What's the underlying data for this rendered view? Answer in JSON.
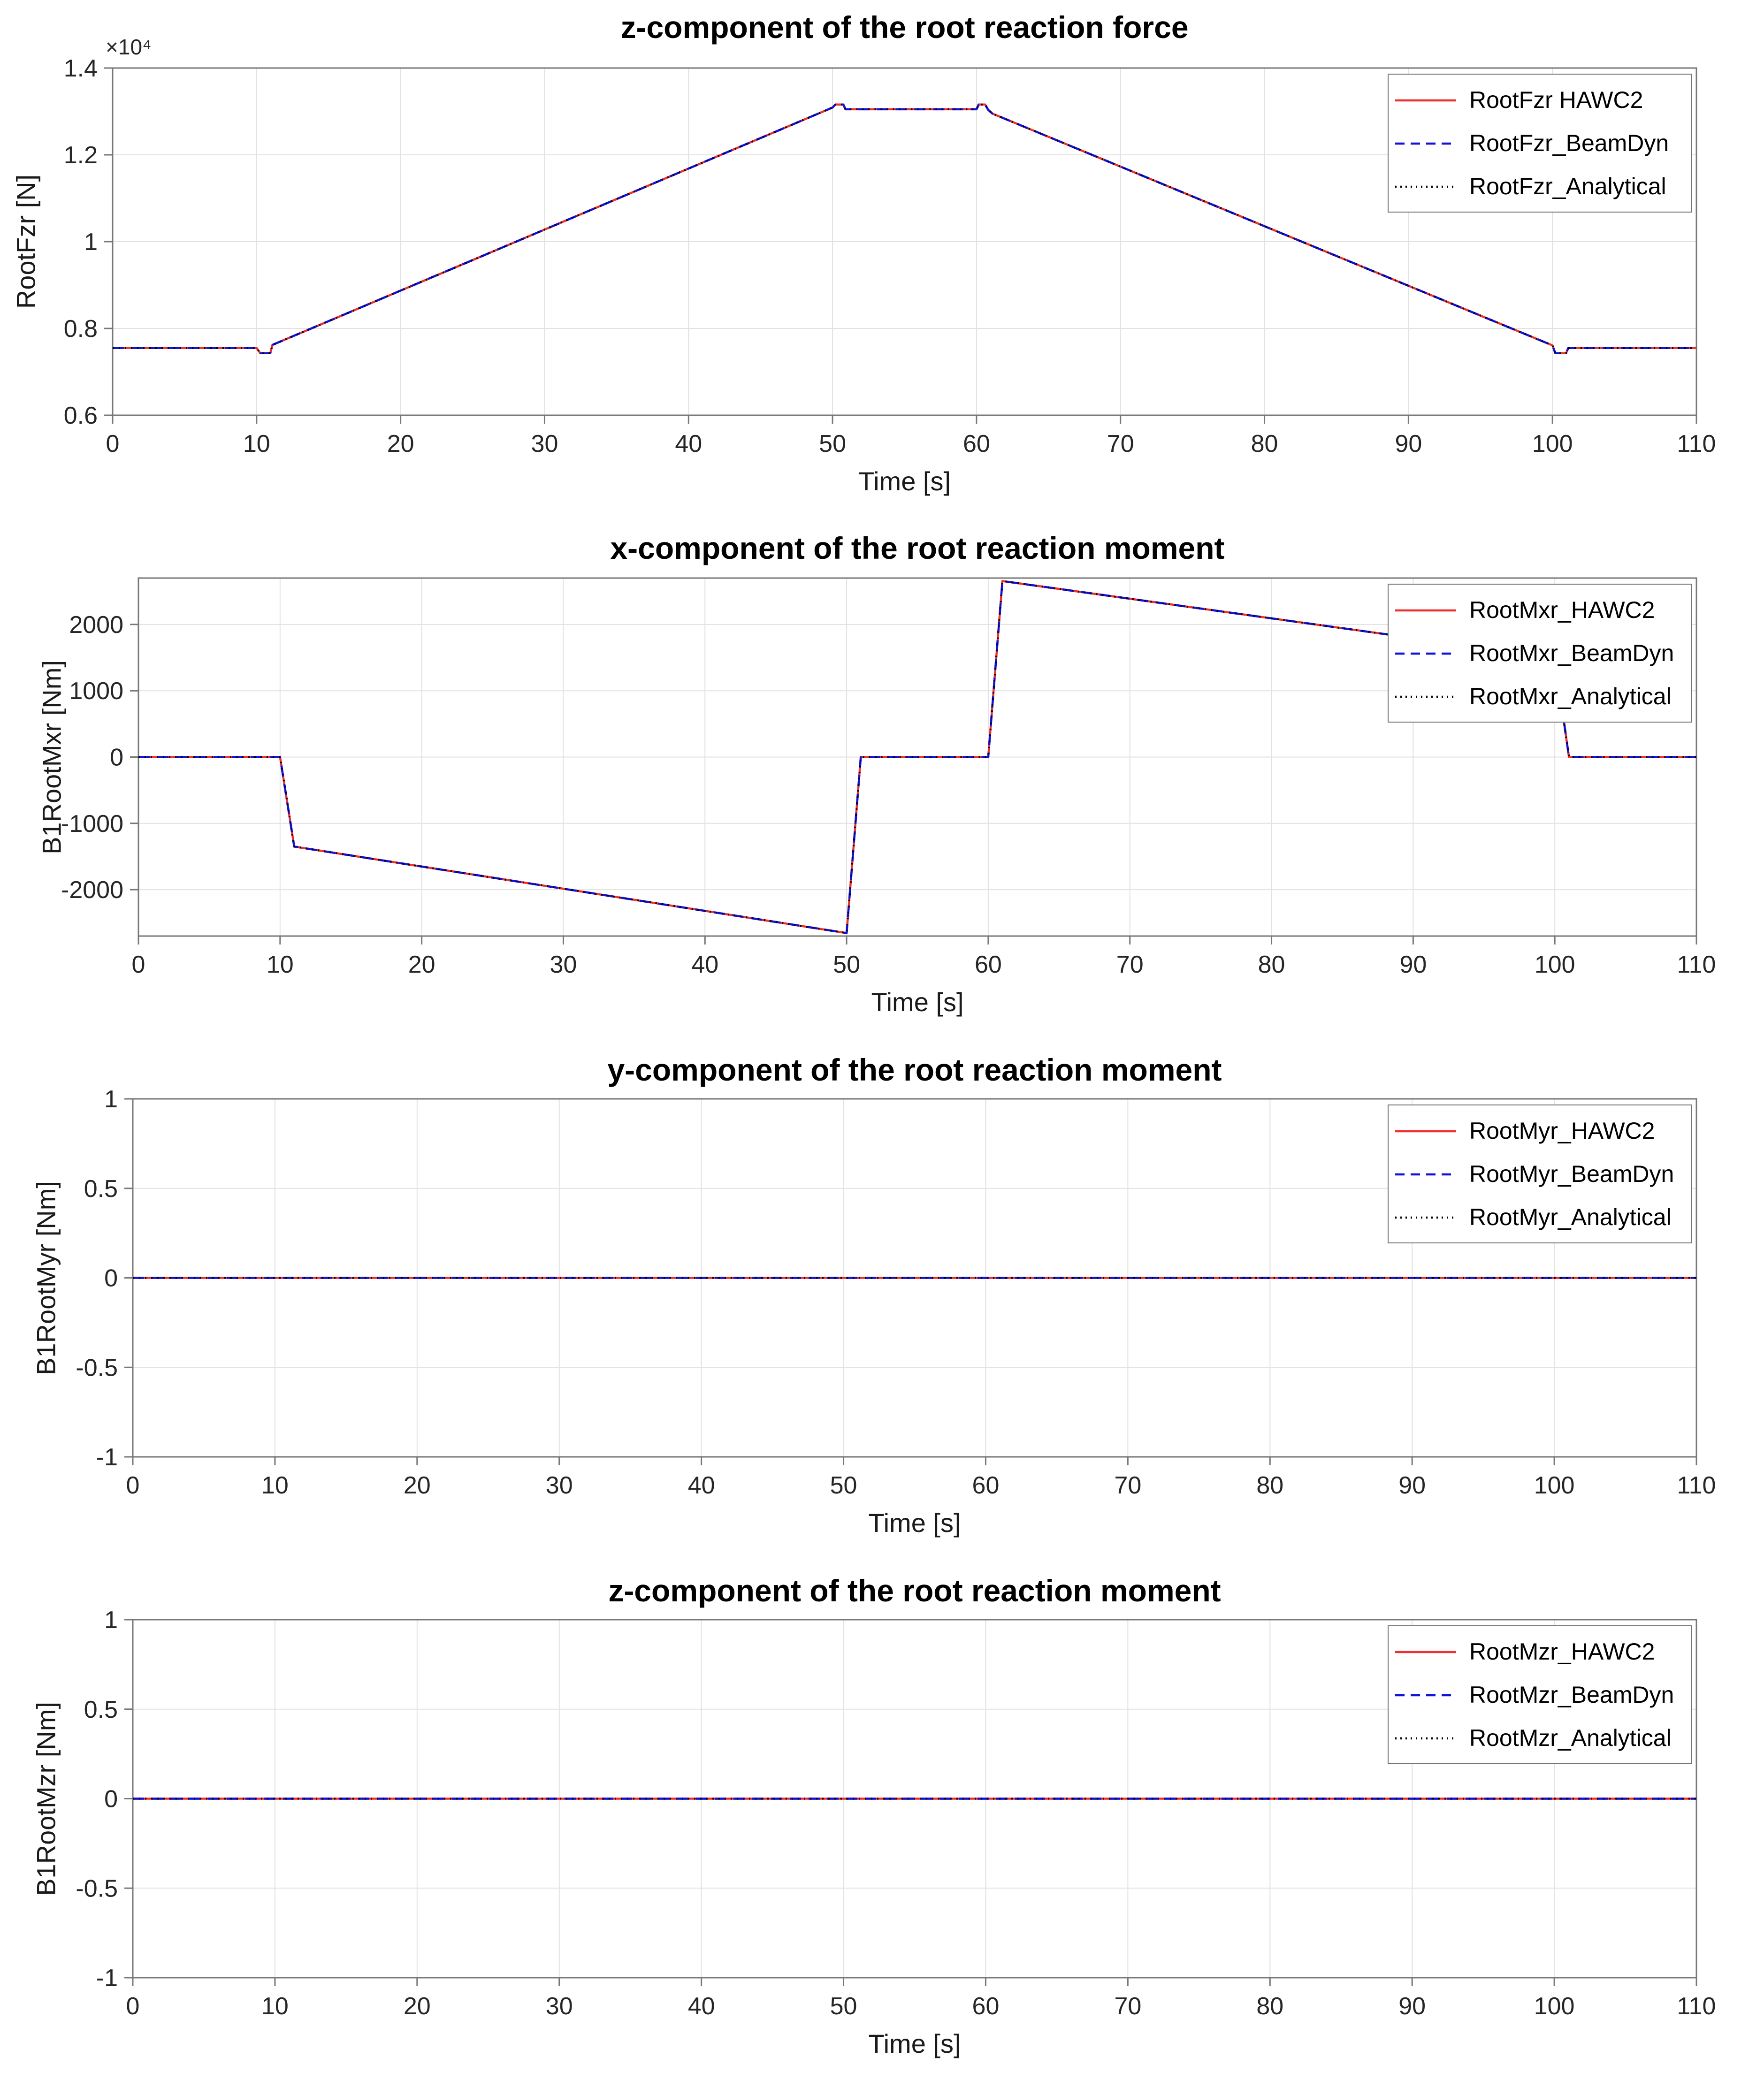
{
  "figure": {
    "background": "#ffffff",
    "grid_color": "#e2e2e2",
    "axis_color": "#787878",
    "tick_text_color": "#262626",
    "series_colors": {
      "hawc2": "#f03030",
      "beamdyn": "#1111dd",
      "analytical": "#000000"
    }
  },
  "chart_data": [
    {
      "type": "line",
      "title": "z-component of the root reaction force",
      "xlabel": "Time [s]",
      "ylabel": "RootFzr [N]",
      "y_axis_multiplier": "×10⁴",
      "xlim": [
        0,
        110
      ],
      "ylim": [
        6000,
        14000
      ],
      "xticks": [
        0,
        10,
        20,
        30,
        40,
        50,
        60,
        70,
        80,
        90,
        100,
        110
      ],
      "ytick_values": [
        6000,
        8000,
        10000,
        12000,
        14000
      ],
      "ytick_labels": [
        "0.6",
        "0.8",
        "1",
        "1.2",
        "1.4"
      ],
      "grid": true,
      "legend_position": "northeast",
      "series_overlap": true,
      "series": [
        {
          "name": "RootFzr HAWC2",
          "color": "#f03030",
          "line_style": "solid"
        },
        {
          "name": "RootFzr_BeamDyn",
          "color": "#1111dd",
          "line_style": "dashed"
        },
        {
          "name": "RootFzr_Analytical",
          "color": "#000000",
          "line_style": "dotted"
        }
      ],
      "shared_points": [
        [
          0,
          7550
        ],
        [
          10,
          7550
        ],
        [
          10.25,
          7430
        ],
        [
          10.95,
          7430
        ],
        [
          11.1,
          7620
        ],
        [
          50,
          13090
        ],
        [
          50.2,
          13160
        ],
        [
          50.75,
          13160
        ],
        [
          50.9,
          13050
        ],
        [
          60,
          13050
        ],
        [
          60.15,
          13160
        ],
        [
          60.6,
          13160
        ],
        [
          60.8,
          13040
        ],
        [
          61.1,
          12950
        ],
        [
          100,
          7610
        ],
        [
          100.2,
          7430
        ],
        [
          100.95,
          7430
        ],
        [
          101.1,
          7550
        ],
        [
          110,
          7550
        ]
      ]
    },
    {
      "type": "line",
      "title": "x-component of the root reaction moment",
      "xlabel": "Time [s]",
      "ylabel": "B1RootMxr [Nm]",
      "y_axis_multiplier": null,
      "xlim": [
        0,
        110
      ],
      "ylim": [
        -2700,
        2700
      ],
      "xticks": [
        0,
        10,
        20,
        30,
        40,
        50,
        60,
        70,
        80,
        90,
        100,
        110
      ],
      "ytick_values": [
        -2000,
        -1000,
        0,
        1000,
        2000
      ],
      "ytick_labels": [
        "-2000",
        "-1000",
        "0",
        "1000",
        "2000"
      ],
      "grid": true,
      "legend_position": "northeast",
      "series_overlap": true,
      "series": [
        {
          "name": "RootMxr_HAWC2",
          "color": "#f03030",
          "line_style": "solid"
        },
        {
          "name": "RootMxr_BeamDyn",
          "color": "#1111dd",
          "line_style": "dashed"
        },
        {
          "name": "RootMxr_Analytical",
          "color": "#000000",
          "line_style": "dotted"
        }
      ],
      "shared_points": [
        [
          0,
          0
        ],
        [
          10,
          0
        ],
        [
          11,
          -1350
        ],
        [
          50,
          -2655
        ],
        [
          51,
          0
        ],
        [
          60,
          0
        ],
        [
          61,
          2655
        ],
        [
          100,
          1500
        ],
        [
          101,
          0
        ],
        [
          110,
          0
        ]
      ]
    },
    {
      "type": "line",
      "title": "y-component of the root reaction moment",
      "xlabel": "Time [s]",
      "ylabel": "B1RootMyr [Nm]",
      "y_axis_multiplier": null,
      "xlim": [
        0,
        110
      ],
      "ylim": [
        -1,
        1
      ],
      "xticks": [
        0,
        10,
        20,
        30,
        40,
        50,
        60,
        70,
        80,
        90,
        100,
        110
      ],
      "ytick_values": [
        -1,
        -0.5,
        0,
        0.5,
        1
      ],
      "ytick_labels": [
        "-1",
        "-0.5",
        "0",
        "0.5",
        "1"
      ],
      "grid": true,
      "legend_position": "northeast",
      "series_overlap": true,
      "series": [
        {
          "name": "RootMyr_HAWC2",
          "color": "#f03030",
          "line_style": "solid"
        },
        {
          "name": "RootMyr_BeamDyn",
          "color": "#1111dd",
          "line_style": "dashed"
        },
        {
          "name": "RootMyr_Analytical",
          "color": "#000000",
          "line_style": "dotted"
        }
      ],
      "shared_points": [
        [
          0,
          0
        ],
        [
          110,
          0
        ]
      ]
    },
    {
      "type": "line",
      "title": "z-component of the root reaction moment",
      "xlabel": "Time [s]",
      "ylabel": "B1RootMzr [Nm]",
      "y_axis_multiplier": null,
      "xlim": [
        0,
        110
      ],
      "ylim": [
        -1,
        1
      ],
      "xticks": [
        0,
        10,
        20,
        30,
        40,
        50,
        60,
        70,
        80,
        90,
        100,
        110
      ],
      "ytick_values": [
        -1,
        -0.5,
        0,
        0.5,
        1
      ],
      "ytick_labels": [
        "-1",
        "-0.5",
        "0",
        "0.5",
        "1"
      ],
      "grid": true,
      "legend_position": "northeast",
      "series_overlap": true,
      "series": [
        {
          "name": "RootMzr_HAWC2",
          "color": "#f03030",
          "line_style": "solid"
        },
        {
          "name": "RootMzr_BeamDyn",
          "color": "#1111dd",
          "line_style": "dashed"
        },
        {
          "name": "RootMzr_Analytical",
          "color": "#000000",
          "line_style": "dotted"
        }
      ],
      "shared_points": [
        [
          0,
          0
        ],
        [
          110,
          0
        ]
      ]
    }
  ]
}
